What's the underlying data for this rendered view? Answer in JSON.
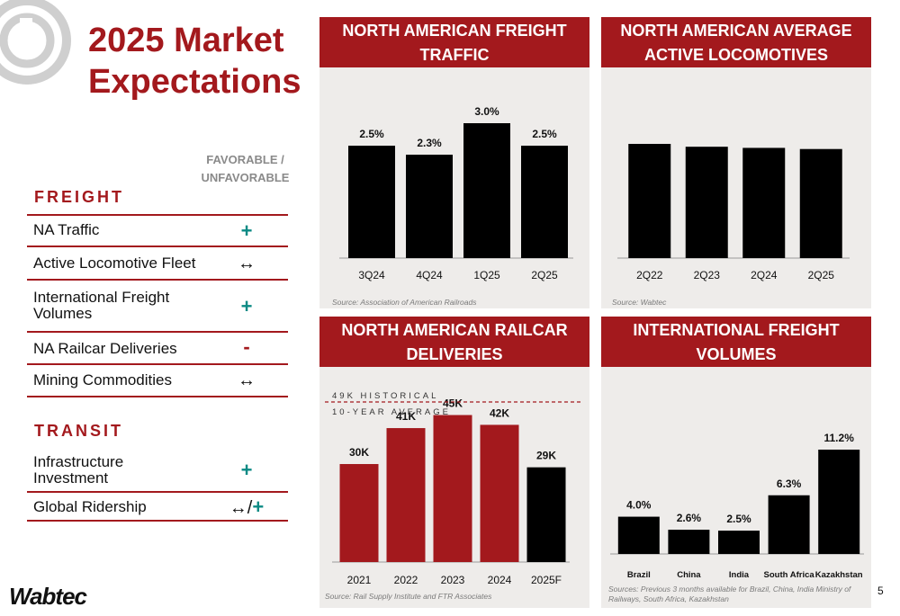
{
  "title": "2025 Market Expectations",
  "favorable_header": "FAVORABLE / UNFAVORABLE",
  "freight_section": "FREIGHT",
  "freight_rows": [
    {
      "label": "NA Traffic",
      "symbol": "+"
    },
    {
      "label": "Active Locomotive Fleet",
      "symbol": "↔"
    },
    {
      "label": "International Freight Volumes",
      "symbol": "+"
    },
    {
      "label": "NA Railcar Deliveries",
      "symbol": "-"
    },
    {
      "label": "Mining Commodities",
      "symbol": "↔"
    }
  ],
  "transit_section": "TRANSIT",
  "transit_rows": [
    {
      "label": "Infrastructure Investment",
      "symbol": "+"
    },
    {
      "label": "Global Ridership",
      "symbol": "↔/",
      "symbol_plus": "+"
    }
  ],
  "brand": "Wabtec",
  "page_number": "5",
  "colors": {
    "accent": "#a3191d",
    "bar_black": "#000000",
    "panel_bg": "#eeecea",
    "teal": "#0b8a84"
  },
  "chart_data": [
    {
      "type": "bar",
      "title": "NORTH AMERICAN FREIGHT TRAFFIC",
      "categories": [
        "3Q24",
        "4Q24",
        "1Q25",
        "2Q25"
      ],
      "values": [
        2.5,
        2.3,
        3.0,
        2.5
      ],
      "labels": [
        "2.5%",
        "2.3%",
        "3.0%",
        "2.5%"
      ],
      "ylim": [
        0,
        3.0
      ],
      "source": "Source: Association of American Railroads"
    },
    {
      "type": "bar",
      "title": "NORTH AMERICAN AVERAGE ACTIVE LOCOMOTIVES",
      "categories": [
        "2Q22",
        "2Q23",
        "2Q24",
        "2Q25"
      ],
      "values": [
        100,
        97.5,
        96.5,
        95.5
      ],
      "ylim": [
        0,
        100
      ],
      "source": "Source: Wabtec"
    },
    {
      "type": "bar",
      "title": "NORTH AMERICAN RAILCAR DELIVERIES",
      "categories": [
        "2021",
        "2022",
        "2023",
        "2024",
        "2025F"
      ],
      "values": [
        30,
        41,
        45,
        42,
        29
      ],
      "labels": [
        "30K",
        "41K",
        "45K",
        "42K",
        "29K"
      ],
      "reference_value": 49,
      "reference_label_1": "49K HISTORICAL",
      "reference_label_2": "10-YEAR AVERAGE",
      "ylim": [
        0,
        49
      ],
      "source": "Source: Rail Supply Institute and FTR Associates"
    },
    {
      "type": "bar",
      "title": "INTERNATIONAL FREIGHT VOLUMES",
      "categories": [
        "Brazil",
        "China",
        "India",
        "South Africa",
        "Kazakhstan"
      ],
      "values": [
        4.0,
        2.6,
        2.5,
        6.3,
        11.2
      ],
      "labels": [
        "4.0%",
        "2.6%",
        "2.5%",
        "6.3%",
        "11.2%"
      ],
      "ylim": [
        0,
        11.2
      ],
      "source": "Sources: Previous 3 months available for Brazil, China, India Ministry of Railways, South Africa, Kazakhstan"
    }
  ]
}
